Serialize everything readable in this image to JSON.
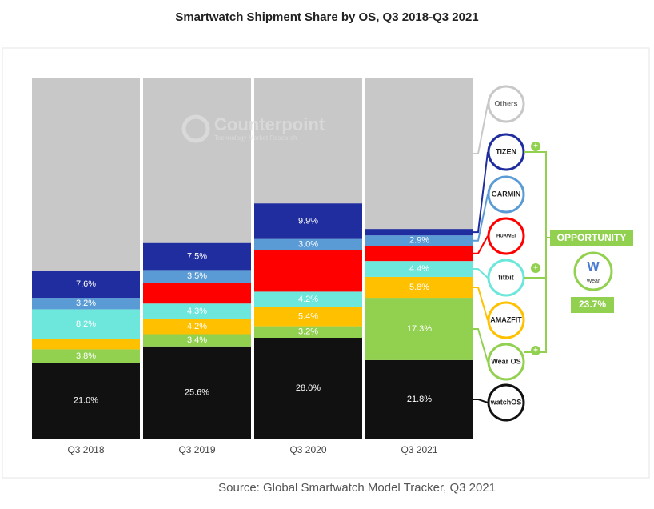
{
  "chart_data": {
    "type": "stacked_bar",
    "title": "Smartwatch Shipment Share by OS, Q3 2018-Q3 2021",
    "categories": [
      "Q3 2018",
      "Q3 2019",
      "Q3 2020",
      "Q3 2021"
    ],
    "ylim": [
      0,
      100
    ],
    "series": [
      {
        "name": "watchOS",
        "color": "#111111",
        "values": [
          21.0,
          25.6,
          28.0,
          21.8
        ],
        "value_labels": [
          "21.0%",
          "25.6%",
          "28.0%",
          "21.8%"
        ]
      },
      {
        "name": "Wear OS",
        "color": "#92d050",
        "values": [
          3.8,
          3.4,
          3.2,
          17.3
        ],
        "value_labels": [
          "3.8%",
          "3.4%",
          "3.2%",
          "17.3%"
        ]
      },
      {
        "name": "AMAZFIT",
        "color": "#ffc000",
        "values": [
          2.9,
          4.2,
          5.4,
          5.8
        ],
        "value_labels": [
          null,
          "4.2%",
          "5.4%",
          "5.8%"
        ]
      },
      {
        "name": "fitbit",
        "color": "#6de6dc",
        "values": [
          8.2,
          4.3,
          4.2,
          4.4
        ],
        "value_labels": [
          "8.2%",
          "4.3%",
          "4.2%",
          "4.4%"
        ]
      },
      {
        "name": "HUAWEI",
        "color": "#ff0000",
        "values": [
          0,
          5.8,
          11.6,
          4.2
        ],
        "value_labels": [
          null,
          null,
          null,
          null
        ]
      },
      {
        "name": "GARMIN",
        "color": "#5b9bd5",
        "values": [
          3.2,
          3.5,
          3.0,
          2.9
        ],
        "value_labels": [
          "3.2%",
          "3.5%",
          "3.0%",
          "2.9%"
        ]
      },
      {
        "name": "TIZEN",
        "color": "#1f2d9e",
        "values": [
          7.6,
          7.5,
          9.9,
          1.8
        ],
        "value_labels": [
          "7.6%",
          "7.5%",
          "9.9%",
          null
        ]
      },
      {
        "name": "Others",
        "color": "#c8c8c8",
        "values": [
          53.3,
          45.7,
          34.7,
          41.8
        ],
        "value_labels": [
          null,
          null,
          null,
          null
        ]
      }
    ],
    "watermark": [
      "Counterpoint",
      "Technology Market Research"
    ],
    "opportunity": {
      "label": "OPPORTUNITY",
      "logo": "Wear",
      "value_label": "23.7%"
    },
    "source": "Source: Global Smartwatch Model Tracker, Q3 2021"
  }
}
